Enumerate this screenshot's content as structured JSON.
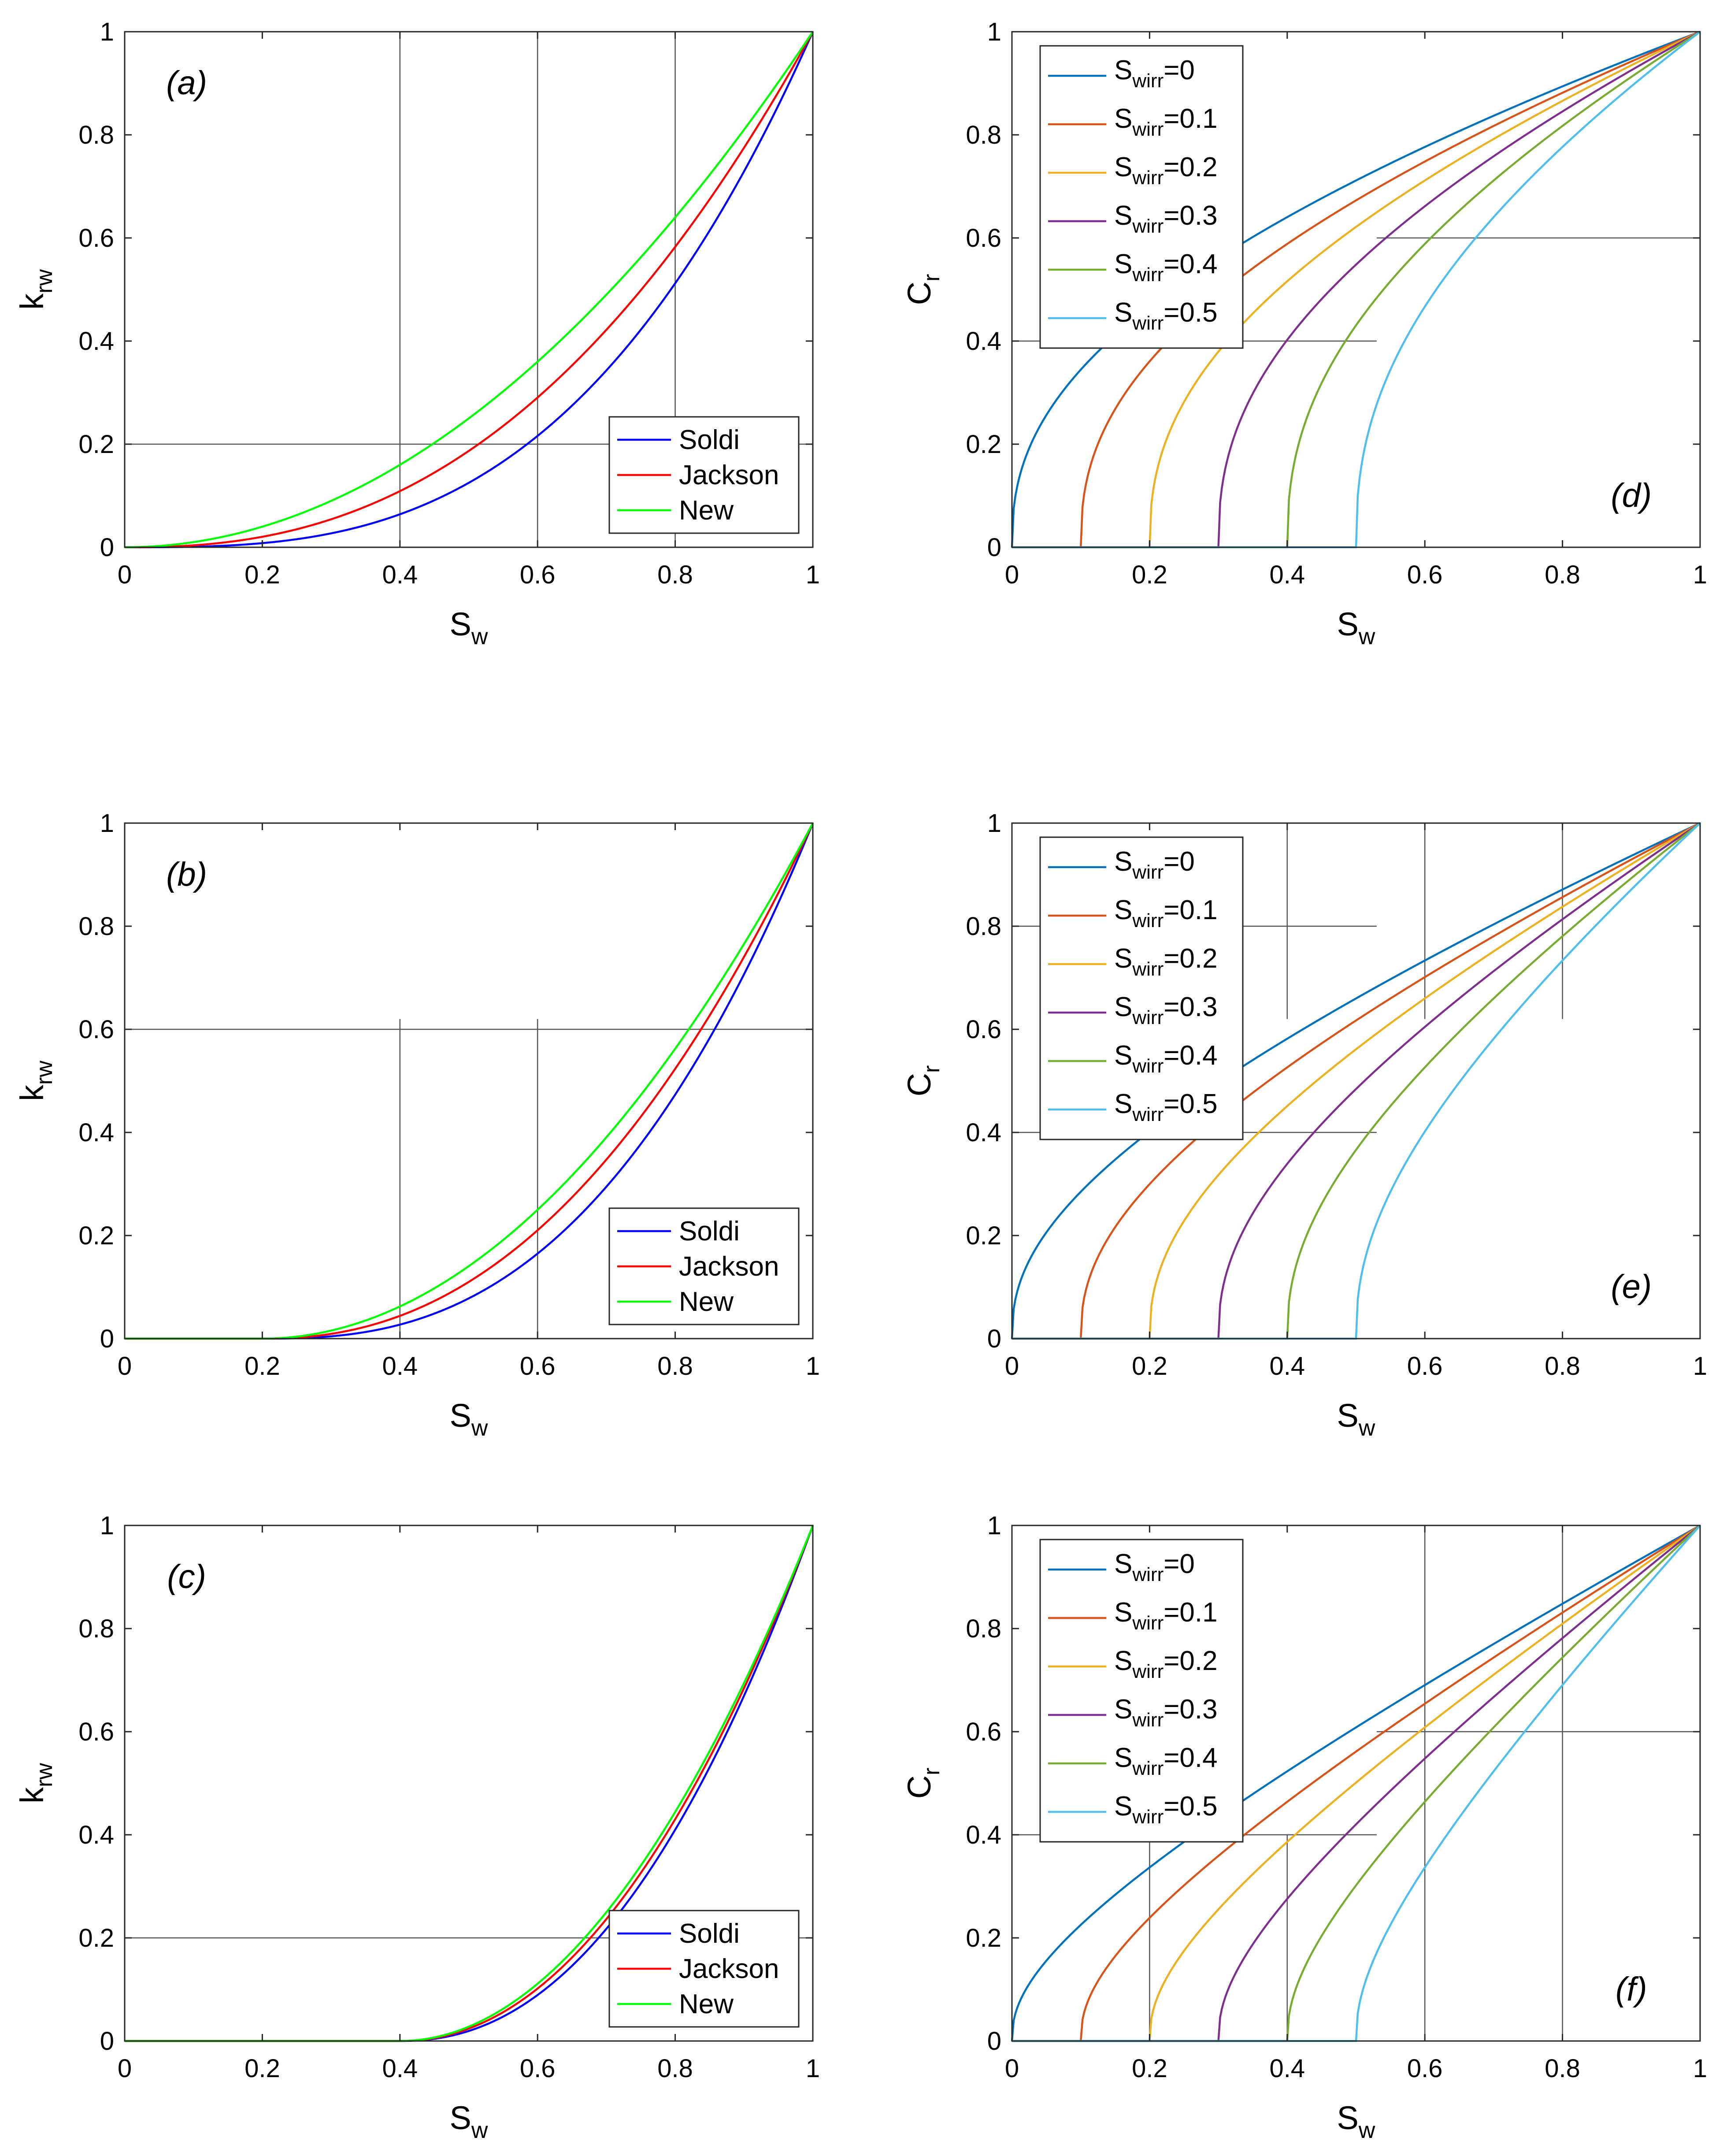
{
  "figure": {
    "description_visible": false
  },
  "chart_data": [
    {
      "id": "a",
      "type": "line",
      "tag": "(a)",
      "xlabel": "S",
      "xlabel_sub": "w",
      "ylabel": "k",
      "ylabel_sub": "rw",
      "xlim": [
        0,
        1
      ],
      "ylim": [
        0,
        1
      ],
      "xticks": [
        "0",
        "0.2",
        "0.4",
        "0.6",
        "0.8",
        "1"
      ],
      "yticks": [
        "0",
        "0.2",
        "0.4",
        "0.6",
        "0.8",
        "1"
      ],
      "swirr": 0,
      "legend_position": "bottom-right",
      "series": [
        {
          "name": "Soldi",
          "color": "#0000ff",
          "exponent": 3.0
        },
        {
          "name": "Jackson",
          "color": "#ff0000",
          "exponent": 2.42
        },
        {
          "name": "New",
          "color": "#00ff00",
          "exponent": 2.0
        }
      ]
    },
    {
      "id": "b",
      "type": "line",
      "tag": "(b)",
      "xlabel": "S",
      "xlabel_sub": "w",
      "ylabel": "k",
      "ylabel_sub": "rw",
      "xlim": [
        0,
        1
      ],
      "ylim": [
        0,
        1
      ],
      "xticks": [
        "0",
        "0.2",
        "0.4",
        "0.6",
        "0.8",
        "1"
      ],
      "yticks": [
        "0",
        "0.2",
        "0.4",
        "0.6",
        "0.8",
        "1"
      ],
      "swirr": 0.2,
      "legend_position": "bottom-right",
      "series": [
        {
          "name": "Soldi",
          "color": "#0000ff",
          "exponent": 2.6
        },
        {
          "name": "Jackson",
          "color": "#ff0000",
          "exponent": 2.25
        },
        {
          "name": "New",
          "color": "#00ff00",
          "exponent": 2.0
        }
      ]
    },
    {
      "id": "c",
      "type": "line",
      "tag": "(c)",
      "xlabel": "S",
      "xlabel_sub": "w",
      "ylabel": "k",
      "ylabel_sub": "rw",
      "xlim": [
        0,
        1
      ],
      "ylim": [
        0,
        1
      ],
      "xticks": [
        "0",
        "0.2",
        "0.4",
        "0.6",
        "0.8",
        "1"
      ],
      "yticks": [
        "0",
        "0.2",
        "0.4",
        "0.6",
        "0.8",
        "1"
      ],
      "swirr": 0.4,
      "legend_position": "bottom-right",
      "series": [
        {
          "name": "Soldi",
          "color": "#0000ff",
          "exponent": 2.2
        },
        {
          "name": "Jackson",
          "color": "#ff0000",
          "exponent": 2.08
        },
        {
          "name": "New",
          "color": "#00ff00",
          "exponent": 2.0
        }
      ]
    },
    {
      "id": "d",
      "type": "line",
      "tag": "(d)",
      "xlabel": "S",
      "xlabel_sub": "w",
      "ylabel": "C",
      "ylabel_sub": "r",
      "xlim": [
        0,
        1
      ],
      "ylim": [
        0,
        1
      ],
      "xticks": [
        "0",
        "0.2",
        "0.4",
        "0.6",
        "0.8",
        "1"
      ],
      "yticks": [
        "0",
        "0.2",
        "0.4",
        "0.6",
        "0.8",
        "1"
      ],
      "curve_exponent": 0.82,
      "curve_power": 0.4,
      "legend_position": "top-left",
      "series": [
        {
          "name": "S",
          "sub": "wirr",
          "suffix": "=0",
          "swirr": 0,
          "color": "#0072bd"
        },
        {
          "name": "S",
          "sub": "wirr",
          "suffix": "=0.1",
          "swirr": 0.1,
          "color": "#d95319"
        },
        {
          "name": "S",
          "sub": "wirr",
          "suffix": "=0.2",
          "swirr": 0.2,
          "color": "#edb120"
        },
        {
          "name": "S",
          "sub": "wirr",
          "suffix": "=0.3",
          "swirr": 0.3,
          "color": "#7e2f8e"
        },
        {
          "name": "S",
          "sub": "wirr",
          "suffix": "=0.4",
          "swirr": 0.4,
          "color": "#77ac30"
        },
        {
          "name": "S",
          "sub": "wirr",
          "suffix": "=0.5",
          "swirr": 0.5,
          "color": "#4dbeee"
        }
      ]
    },
    {
      "id": "e",
      "type": "line",
      "tag": "(e)",
      "xlabel": "S",
      "xlabel_sub": "w",
      "ylabel": "C",
      "ylabel_sub": "r",
      "xlim": [
        0,
        1
      ],
      "ylim": [
        0,
        1
      ],
      "xticks": [
        "0",
        "0.2",
        "0.4",
        "0.6",
        "0.8",
        "1"
      ],
      "yticks": [
        "0",
        "0.2",
        "0.4",
        "0.6",
        "0.8",
        "1"
      ],
      "curve_exponent": 0.62,
      "curve_power": 0.4,
      "legend_position": "top-left",
      "series": [
        {
          "name": "S",
          "sub": "wirr",
          "suffix": "=0",
          "swirr": 0,
          "color": "#0072bd"
        },
        {
          "name": "S",
          "sub": "wirr",
          "suffix": "=0.1",
          "swirr": 0.1,
          "color": "#d95319"
        },
        {
          "name": "S",
          "sub": "wirr",
          "suffix": "=0.2",
          "swirr": 0.2,
          "color": "#edb120"
        },
        {
          "name": "S",
          "sub": "wirr",
          "suffix": "=0.3",
          "swirr": 0.3,
          "color": "#7e2f8e"
        },
        {
          "name": "S",
          "sub": "wirr",
          "suffix": "=0.4",
          "swirr": 0.4,
          "color": "#77ac30"
        },
        {
          "name": "S",
          "sub": "wirr",
          "suffix": "=0.5",
          "swirr": 0.5,
          "color": "#4dbeee"
        }
      ]
    },
    {
      "id": "f",
      "type": "line",
      "tag": "(f)",
      "xlabel": "S",
      "xlabel_sub": "w",
      "ylabel": "C",
      "ylabel_sub": "r",
      "xlim": [
        0,
        1
      ],
      "ylim": [
        0,
        1
      ],
      "xticks": [
        "0",
        "0.2",
        "0.4",
        "0.6",
        "0.8",
        "1"
      ],
      "yticks": [
        "0",
        "0.2",
        "0.4",
        "0.6",
        "0.8",
        "1"
      ],
      "curve_exponent": 0.42,
      "curve_power": 0.4,
      "legend_position": "top-left",
      "series": [
        {
          "name": "S",
          "sub": "wirr",
          "suffix": "=0",
          "swirr": 0,
          "color": "#0072bd"
        },
        {
          "name": "S",
          "sub": "wirr",
          "suffix": "=0.1",
          "swirr": 0.1,
          "color": "#d95319"
        },
        {
          "name": "S",
          "sub": "wirr",
          "suffix": "=0.2",
          "swirr": 0.2,
          "color": "#edb120"
        },
        {
          "name": "S",
          "sub": "wirr",
          "suffix": "=0.3",
          "swirr": 0.3,
          "color": "#7e2f8e"
        },
        {
          "name": "S",
          "sub": "wirr",
          "suffix": "=0.4",
          "swirr": 0.4,
          "color": "#77ac30"
        },
        {
          "name": "S",
          "sub": "wirr",
          "suffix": "=0.5",
          "swirr": 0.5,
          "color": "#4dbeee"
        }
      ]
    }
  ]
}
